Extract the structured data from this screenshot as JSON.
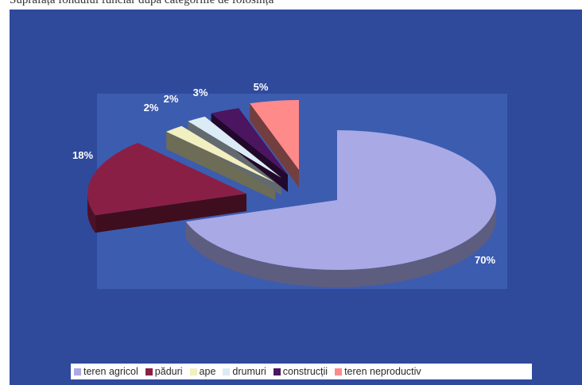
{
  "page": {
    "cutoff_text": "Suprafața fondului funciar după categoriile de folosință"
  },
  "chart_data": {
    "type": "pie",
    "categories": [
      "teren agricol",
      "păduri",
      "ape",
      "drumuri",
      "construcții",
      "teren neproductiv"
    ],
    "values": [
      70,
      18,
      2,
      2,
      3,
      5
    ],
    "data_labels": [
      "70%",
      "18%",
      "2%",
      "2%",
      "3%",
      "5%"
    ],
    "colors": [
      "#a9a9e6",
      "#8a1f45",
      "#f2efc0",
      "#dcecf6",
      "#4b1560",
      "#ff8a8a"
    ],
    "legend_position": "bottom",
    "style": "3d-exploded"
  }
}
